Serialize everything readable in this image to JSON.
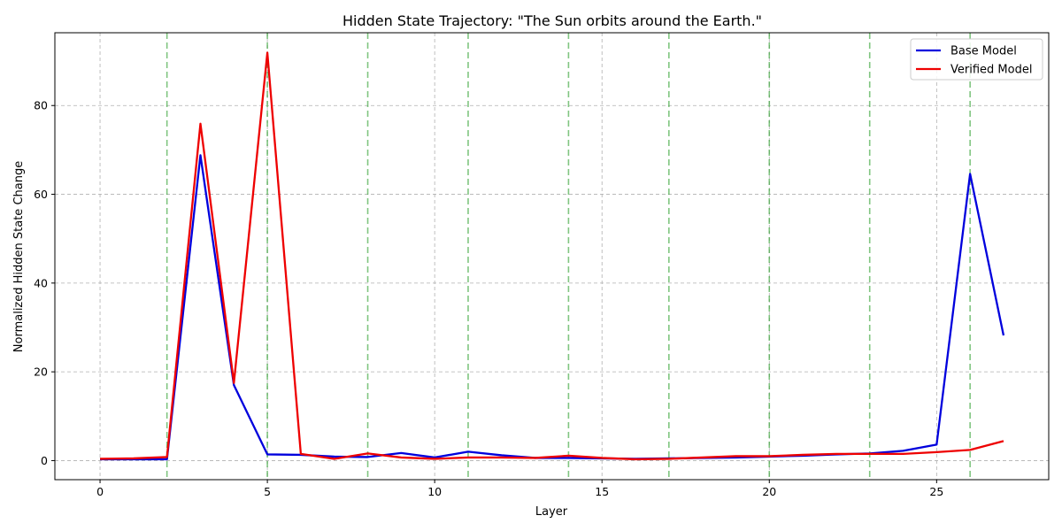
{
  "chart_data": {
    "type": "line",
    "title": "Hidden State Trajectory: \"The Sun orbits around the Earth.\"",
    "xlabel": "Layer",
    "ylabel": "Normalized Hidden State Change",
    "xlim": [
      -1.35,
      28.35
    ],
    "ylim": [
      -4.3,
      96.4
    ],
    "xticks": [
      0,
      5,
      10,
      15,
      20,
      25
    ],
    "yticks": [
      0,
      20,
      40,
      60,
      80
    ],
    "grid": true,
    "legend_position": "top-right",
    "vlines": [
      2,
      5,
      8,
      11,
      14,
      17,
      20,
      23,
      26
    ],
    "vline_color": "#2ca02c",
    "x": [
      0,
      1,
      2,
      3,
      4,
      5,
      6,
      7,
      8,
      9,
      10,
      11,
      12,
      13,
      14,
      15,
      16,
      17,
      18,
      19,
      20,
      21,
      22,
      23,
      24,
      25,
      26,
      27
    ],
    "series": [
      {
        "name": "Base Model",
        "color": "#0000dd",
        "values": [
          0.3,
          0.3,
          0.3,
          68.8,
          17.0,
          1.4,
          1.3,
          0.9,
          0.8,
          1.7,
          0.7,
          2.0,
          1.2,
          0.6,
          0.6,
          0.5,
          0.4,
          0.5,
          0.6,
          0.7,
          0.9,
          1.1,
          1.4,
          1.6,
          2.2,
          3.6,
          64.6,
          28.2
        ]
      },
      {
        "name": "Verified Model",
        "color": "#ee0000",
        "values": [
          0.4,
          0.5,
          0.8,
          75.9,
          17.5,
          91.9,
          1.5,
          0.4,
          1.6,
          0.7,
          0.4,
          0.7,
          0.7,
          0.6,
          1.1,
          0.6,
          0.3,
          0.4,
          0.7,
          1.0,
          1.0,
          1.3,
          1.5,
          1.5,
          1.5,
          1.9,
          2.4,
          4.4
        ]
      }
    ]
  }
}
